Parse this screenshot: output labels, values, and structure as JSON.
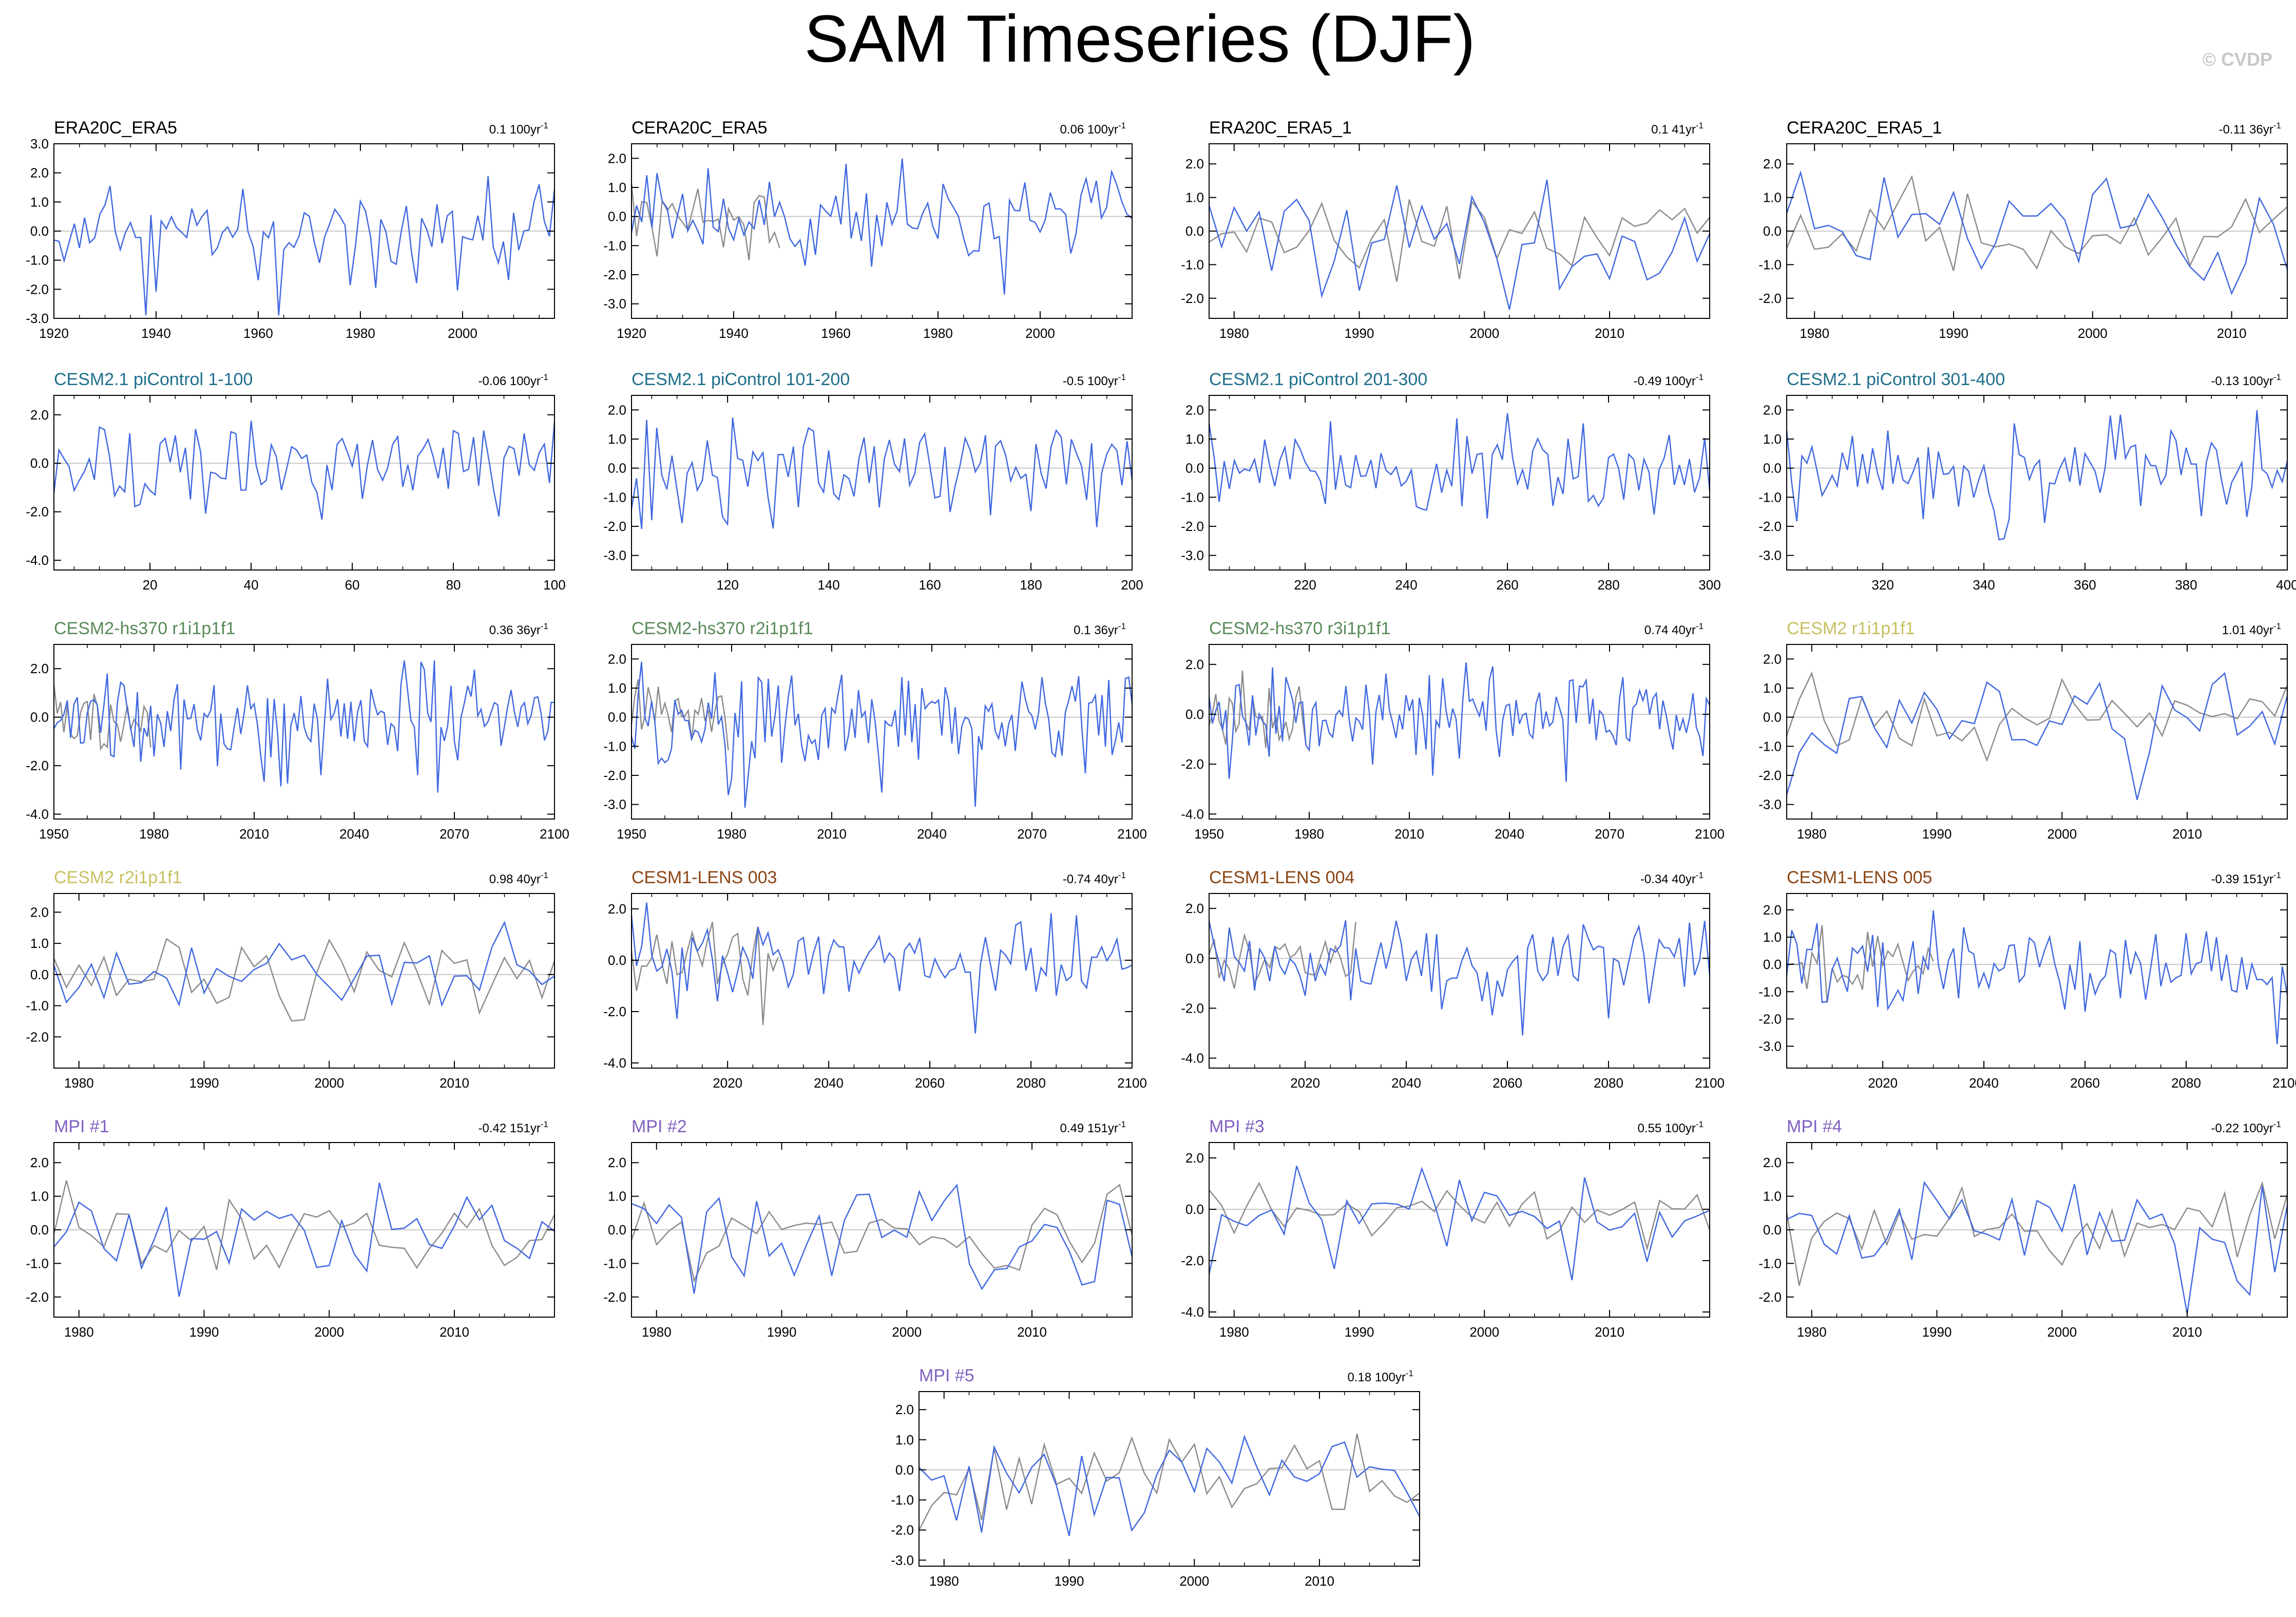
{
  "page": {
    "title": "SAM Timeseries (DJF)",
    "watermark": "© CVDP"
  },
  "colors": {
    "model_line": "#4169e1",
    "reference_line": "#8c8c8c",
    "zero_line": "#c8c8c8",
    "observations_title": "#000000",
    "cesm21_picontrol_title": "#1f6f8b",
    "cesm2_hs370_title": "#5a8a5a",
    "cesm2_title": "#c8c060",
    "cesm1_lens_title": "#8b4513",
    "mpi_title": "#8060c0"
  },
  "chart_data": [
    {
      "id": "p1",
      "type": "line",
      "title": "ERA20C_ERA5",
      "title_color": "#000000",
      "trend": "0.1 100yr",
      "trend_sup": "-1",
      "xlim": [
        1920,
        2018
      ],
      "ylim": [
        -3,
        3
      ],
      "yticks": [
        -3,
        -2,
        -1,
        0,
        1,
        2,
        3
      ],
      "xticks": [
        1920,
        1940,
        1960,
        1980,
        2000
      ],
      "ref": false,
      "seed": 11,
      "amp": 1.0
    },
    {
      "id": "p2",
      "type": "line",
      "title": "CERA20C_ERA5",
      "title_color": "#000000",
      "trend": "0.06 100yr",
      "trend_sup": "-1",
      "xlim": [
        1920,
        2018
      ],
      "ylim": [
        -3.5,
        2.5
      ],
      "yticks": [
        -3,
        -2,
        -1,
        0,
        1,
        2
      ],
      "xticks": [
        1920,
        1940,
        1960,
        1980,
        2000
      ],
      "ref": true,
      "seed": 12,
      "amp": 1.0
    },
    {
      "id": "p3",
      "type": "line",
      "title": "ERA20C_ERA5_1",
      "title_color": "#000000",
      "trend": "0.1 41yr",
      "trend_sup": "-1",
      "xlim": [
        1978,
        2018
      ],
      "ylim": [
        -2.6,
        2.6
      ],
      "yticks": [
        -2,
        -1,
        0,
        1,
        2
      ],
      "xticks": [
        1980,
        1990,
        2000,
        2010
      ],
      "ref": true,
      "seed": 13,
      "amp": 0.95
    },
    {
      "id": "p4",
      "type": "line",
      "title": "CERA20C_ERA5_1",
      "title_color": "#000000",
      "trend": "-0.11 36yr",
      "trend_sup": "-1",
      "xlim": [
        1978,
        2014
      ],
      "ylim": [
        -2.6,
        2.6
      ],
      "yticks": [
        -2,
        -1,
        0,
        1,
        2
      ],
      "xticks": [
        1980,
        1990,
        2000,
        2010
      ],
      "ref": true,
      "seed": 14,
      "amp": 0.95
    },
    {
      "id": "p5",
      "type": "line",
      "title": "CESM2.1 piControl 1-100",
      "title_color": "#1f6f8b",
      "trend": "-0.06 100yr",
      "trend_sup": "-1",
      "xlim": [
        1,
        100
      ],
      "ylim": [
        -4.4,
        2.8
      ],
      "yticks": [
        -4,
        -2,
        0,
        2
      ],
      "xticks": [
        20,
        40,
        60,
        80,
        100
      ],
      "ref": false,
      "seed": 21,
      "amp": 1.05
    },
    {
      "id": "p6",
      "type": "line",
      "title": "CESM2.1 piControl 101-200",
      "title_color": "#1f6f8b",
      "trend": "-0.5 100yr",
      "trend_sup": "-1",
      "xlim": [
        101,
        200
      ],
      "ylim": [
        -3.5,
        2.5
      ],
      "yticks": [
        -3,
        -2,
        -1,
        0,
        1,
        2
      ],
      "xticks": [
        120,
        140,
        160,
        180,
        200
      ],
      "ref": false,
      "seed": 22,
      "amp": 1.0
    },
    {
      "id": "p7",
      "type": "line",
      "title": "CESM2.1 piControl 201-300",
      "title_color": "#1f6f8b",
      "trend": "-0.49 100yr",
      "trend_sup": "-1",
      "xlim": [
        201,
        300
      ],
      "ylim": [
        -3.5,
        2.5
      ],
      "yticks": [
        -3,
        -2,
        -1,
        0,
        1,
        2
      ],
      "xticks": [
        220,
        240,
        260,
        280,
        300
      ],
      "ref": false,
      "seed": 23,
      "amp": 1.0
    },
    {
      "id": "p8",
      "type": "line",
      "title": "CESM2.1 piControl 301-400",
      "title_color": "#1f6f8b",
      "trend": "-0.13 100yr",
      "trend_sup": "-1",
      "xlim": [
        301,
        400
      ],
      "ylim": [
        -3.5,
        2.5
      ],
      "yticks": [
        -3,
        -2,
        -1,
        0,
        1,
        2
      ],
      "xticks": [
        320,
        340,
        360,
        380,
        400
      ],
      "ref": false,
      "seed": 24,
      "amp": 1.0
    },
    {
      "id": "p9",
      "type": "line",
      "title": "CESM2-hs370 r1i1p1f1",
      "title_color": "#5a8a5a",
      "trend": "0.36 36yr",
      "trend_sup": "-1",
      "xlim": [
        1950,
        2100
      ],
      "ylim": [
        -4.2,
        3.0
      ],
      "yticks": [
        -4,
        -2,
        0,
        2
      ],
      "xticks": [
        1950,
        1980,
        2010,
        2040,
        2070,
        2100
      ],
      "ref": true,
      "seed": 31,
      "amp": 1.1
    },
    {
      "id": "p10",
      "type": "line",
      "title": "CESM2-hs370 r2i1p1f1",
      "title_color": "#5a8a5a",
      "trend": "0.1 36yr",
      "trend_sup": "-1",
      "xlim": [
        1950,
        2100
      ],
      "ylim": [
        -3.5,
        2.5
      ],
      "yticks": [
        -3,
        -2,
        -1,
        0,
        1,
        2
      ],
      "xticks": [
        1950,
        1980,
        2010,
        2040,
        2070,
        2100
      ],
      "ref": true,
      "seed": 32,
      "amp": 1.0
    },
    {
      "id": "p11",
      "type": "line",
      "title": "CESM2-hs370 r3i1p1f1",
      "title_color": "#5a8a5a",
      "trend": "0.74 40yr",
      "trend_sup": "-1",
      "xlim": [
        1950,
        2100
      ],
      "ylim": [
        -4.2,
        2.8
      ],
      "yticks": [
        -4,
        -2,
        0,
        2
      ],
      "xticks": [
        1950,
        1980,
        2010,
        2040,
        2070,
        2100
      ],
      "ref": true,
      "seed": 33,
      "amp": 1.05
    },
    {
      "id": "p12",
      "type": "line",
      "title": "CESM2 r1i1p1f1",
      "title_color": "#c8c060",
      "trend": "1.01 40yr",
      "trend_sup": "-1",
      "xlim": [
        1978,
        2018
      ],
      "ylim": [
        -3.5,
        2.5
      ],
      "yticks": [
        -3,
        -2,
        -1,
        0,
        1,
        2
      ],
      "xticks": [
        1980,
        1990,
        2000,
        2010
      ],
      "ref": true,
      "seed": 34,
      "amp": 1.0
    },
    {
      "id": "p13",
      "type": "line",
      "title": "CESM2 r2i1p1f1",
      "title_color": "#c8c060",
      "trend": "0.98 40yr",
      "trend_sup": "-1",
      "xlim": [
        1978,
        2018
      ],
      "ylim": [
        -3.0,
        2.6
      ],
      "yticks": [
        -2,
        -1,
        0,
        1,
        2
      ],
      "xticks": [
        1980,
        1990,
        2000,
        2010
      ],
      "ref": true,
      "seed": 41,
      "amp": 0.95
    },
    {
      "id": "p14",
      "type": "line",
      "title": "CESM1-LENS 003",
      "title_color": "#8b4513",
      "trend": "-0.74 40yr",
      "trend_sup": "-1",
      "xlim": [
        2001,
        2100
      ],
      "ylim": [
        -4.2,
        2.6
      ],
      "yticks": [
        -4,
        -2,
        0,
        2
      ],
      "xticks": [
        2020,
        2040,
        2060,
        2080,
        2100
      ],
      "ref": true,
      "seed": 42,
      "amp": 1.05
    },
    {
      "id": "p15",
      "type": "line",
      "title": "CESM1-LENS 004",
      "title_color": "#8b4513",
      "trend": "-0.34 40yr",
      "trend_sup": "-1",
      "xlim": [
        2001,
        2100
      ],
      "ylim": [
        -4.4,
        2.6
      ],
      "yticks": [
        -4,
        -2,
        0,
        2
      ],
      "xticks": [
        2020,
        2040,
        2060,
        2080,
        2100
      ],
      "ref": true,
      "seed": 43,
      "amp": 1.05
    },
    {
      "id": "p16",
      "type": "line",
      "title": "CESM1-LENS 005",
      "title_color": "#8b4513",
      "trend": "-0.39 151yr",
      "trend_sup": "-1",
      "xlim": [
        2001,
        2100
      ],
      "ylim": [
        -3.8,
        2.6
      ],
      "yticks": [
        -3,
        -2,
        -1,
        0,
        1,
        2
      ],
      "xticks": [
        2020,
        2040,
        2060,
        2080,
        2100
      ],
      "ref": true,
      "seed": 44,
      "amp": 1.0
    },
    {
      "id": "p17",
      "type": "line",
      "title": "MPI #1",
      "title_color": "#8060c0",
      "trend": "-0.42 151yr",
      "trend_sup": "-1",
      "xlim": [
        1978,
        2018
      ],
      "ylim": [
        -2.6,
        2.6
      ],
      "yticks": [
        -2,
        -1,
        0,
        1,
        2
      ],
      "xticks": [
        1980,
        1990,
        2000,
        2010
      ],
      "ref": true,
      "seed": 51,
      "amp": 0.95
    },
    {
      "id": "p18",
      "type": "line",
      "title": "MPI #2",
      "title_color": "#8060c0",
      "trend": "0.49 151yr",
      "trend_sup": "-1",
      "xlim": [
        1978,
        2018
      ],
      "ylim": [
        -2.6,
        2.6
      ],
      "yticks": [
        -2,
        -1,
        0,
        1,
        2
      ],
      "xticks": [
        1980,
        1990,
        2000,
        2010
      ],
      "ref": true,
      "seed": 52,
      "amp": 0.95
    },
    {
      "id": "p19",
      "type": "line",
      "title": "MPI #3",
      "title_color": "#8060c0",
      "trend": "0.55 100yr",
      "trend_sup": "-1",
      "xlim": [
        1978,
        2018
      ],
      "ylim": [
        -4.2,
        2.6
      ],
      "yticks": [
        -4,
        -2,
        0,
        2
      ],
      "xticks": [
        1980,
        1990,
        2000,
        2010
      ],
      "ref": true,
      "seed": 53,
      "amp": 1.0
    },
    {
      "id": "p20",
      "type": "line",
      "title": "MPI #4",
      "title_color": "#8060c0",
      "trend": "-0.22 100yr",
      "trend_sup": "-1",
      "xlim": [
        1978,
        2018
      ],
      "ylim": [
        -2.6,
        2.6
      ],
      "yticks": [
        -2,
        -1,
        0,
        1,
        2
      ],
      "xticks": [
        1980,
        1990,
        2000,
        2010
      ],
      "ref": true,
      "seed": 54,
      "amp": 0.95
    },
    {
      "id": "p21",
      "type": "line",
      "title": "MPI #5",
      "title_color": "#8060c0",
      "trend": "0.18 100yr",
      "trend_sup": "-1",
      "xlim": [
        1978,
        2018
      ],
      "ylim": [
        -3.2,
        2.6
      ],
      "yticks": [
        -3,
        -2,
        -1,
        0,
        1,
        2
      ],
      "xticks": [
        1980,
        1990,
        2000,
        2010
      ],
      "ref": true,
      "seed": 55,
      "amp": 0.95
    }
  ]
}
